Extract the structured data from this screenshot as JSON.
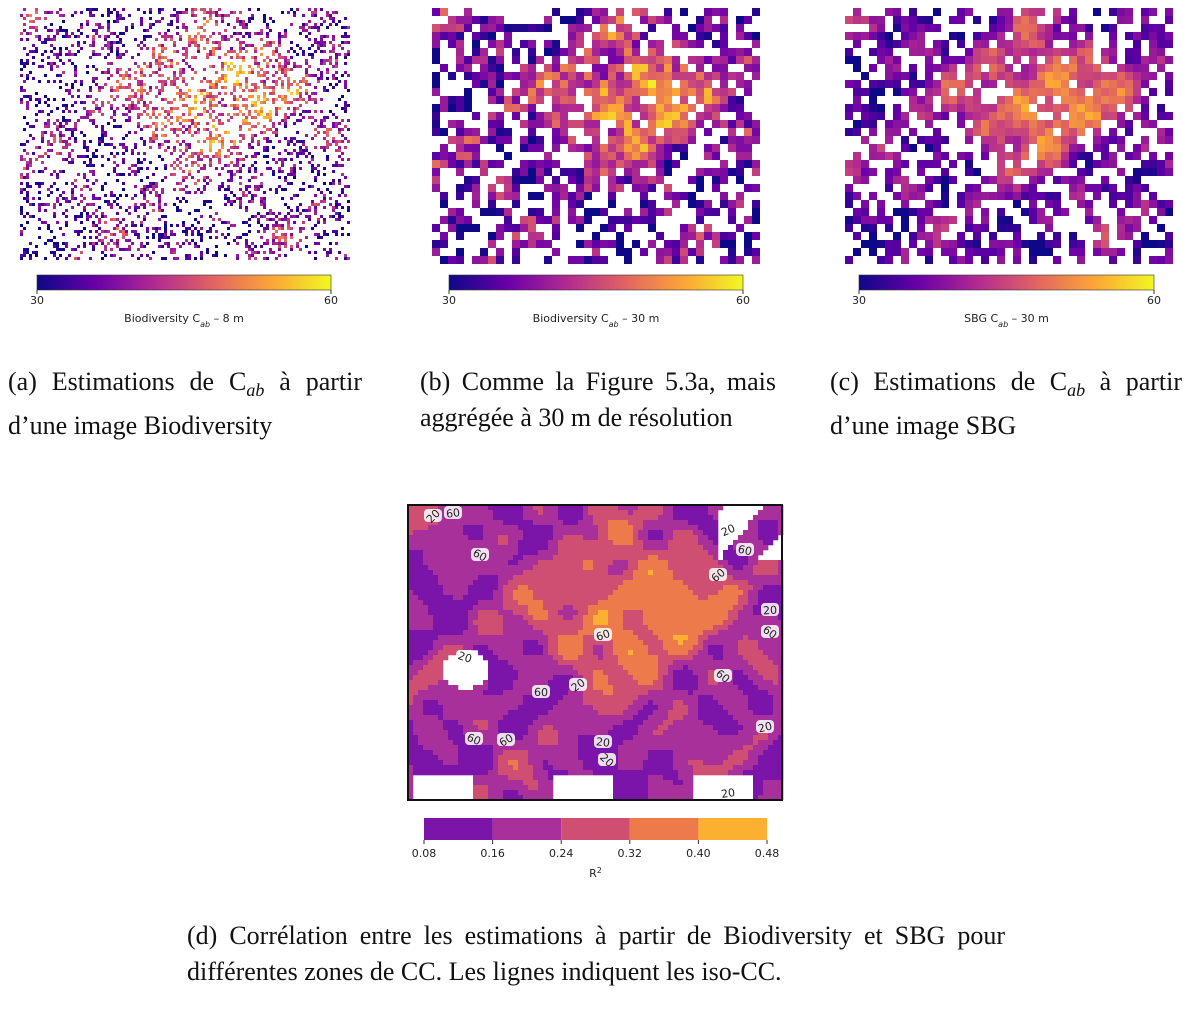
{
  "panels": [
    {
      "colorbar": {
        "lim": [
          30,
          60
        ],
        "ticks": [
          30,
          60
        ],
        "colors": [
          "#0d0887",
          "#6a00a8",
          "#b12a90",
          "#e16462",
          "#fca636",
          "#f0f921"
        ],
        "label": {
          "before": "Biodiversity C",
          "sub": "ab",
          "after": " – 8 m"
        }
      },
      "caption": {
        "before": "(a) Estimations de C",
        "sub": "ab",
        "after": " à partir d’une image Biodiversity"
      }
    },
    {
      "colorbar": {
        "lim": [
          30,
          60
        ],
        "ticks": [
          30,
          60
        ],
        "colors": [
          "#0d0887",
          "#6a00a8",
          "#b12a90",
          "#e16462",
          "#fca636",
          "#f0f921"
        ],
        "label": {
          "before": "Biodiversity C",
          "sub": "ab",
          "after": " – 30 m"
        }
      },
      "caption": {
        "before": "(b) Comme la Figure 5.3a, mais aggrégée à 30 m de résolution"
      }
    },
    {
      "colorbar": {
        "lim": [
          30,
          60
        ],
        "ticks": [
          30,
          60
        ],
        "colors": [
          "#0d0887",
          "#6a00a8",
          "#b12a90",
          "#e16462",
          "#fca636",
          "#f0f921"
        ],
        "label": {
          "before": "SBG C",
          "sub": "ab",
          "after": " – 30 m"
        }
      },
      "caption": {
        "before": "(c) Estimations de C",
        "sub": "ab",
        "after": " à partir d’une image SBG"
      }
    },
    {
      "contour_labels": [
        20,
        60,
        60,
        20,
        60,
        60,
        20,
        60,
        60,
        20,
        20,
        60,
        60,
        20,
        60,
        60,
        20,
        20,
        20
      ],
      "colorbar": {
        "lim": [
          0.08,
          0.48
        ],
        "ticks": [
          0.08,
          0.16,
          0.24,
          0.32,
          {
            "value": 0.4,
            "label": "0.40"
          },
          0.48
        ],
        "colors": [
          "#7b14a8",
          "#a8309a",
          "#cf4f72",
          "#ed7a4a",
          "#fbb032"
        ],
        "label": {
          "before": "R",
          "sup": "2"
        }
      },
      "caption": {
        "before": "(d) Corrélation entre les estimations à partir de Biodiversity et SBG pour différentes zones de CC. Les lignes indiquent les iso-CC."
      }
    }
  ]
}
